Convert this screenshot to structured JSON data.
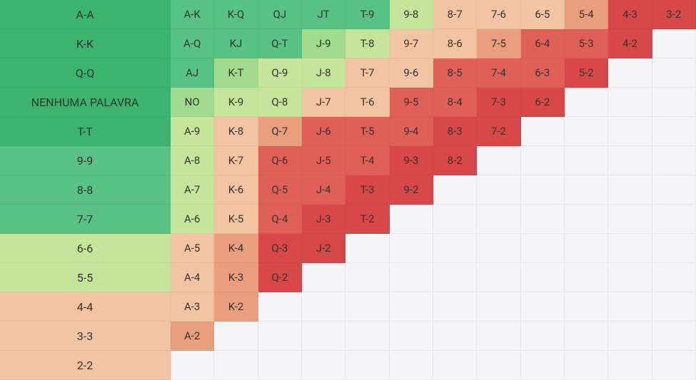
{
  "type": "heatmap",
  "grid_cols": 13,
  "grid_rows": 13,
  "first_col_width": 239,
  "cell_fontsize": 15,
  "text_color": "#333333",
  "colors": {
    "g4": "#3cb46e",
    "g3": "#58c184",
    "g2": "#a2da8e",
    "g1": "#c5e59a",
    "o2": "#f2c4a2",
    "o1": "#e99e7d",
    "r2": "#e06058",
    "r1": "#d84848",
    "empty": "#f5f5f7"
  },
  "rows": [
    [
      {
        "label": "A-A",
        "c": "g4"
      },
      {
        "label": "A-K",
        "c": "g3"
      },
      {
        "label": "K-Q",
        "c": "g3"
      },
      {
        "label": "QJ",
        "c": "g3"
      },
      {
        "label": "JT",
        "c": "g3"
      },
      {
        "label": "T-9",
        "c": "g3"
      },
      {
        "label": "9-8",
        "c": "g1"
      },
      {
        "label": "8-7",
        "c": "o2"
      },
      {
        "label": "7-6",
        "c": "o2"
      },
      {
        "label": "6-5",
        "c": "o2"
      },
      {
        "label": "5-4",
        "c": "o1"
      },
      {
        "label": "4-3",
        "c": "r1"
      },
      {
        "label": "3-2",
        "c": "r1"
      }
    ],
    [
      {
        "label": "K-K",
        "c": "g4"
      },
      {
        "label": "A-Q",
        "c": "g3"
      },
      {
        "label": "KJ",
        "c": "g3"
      },
      {
        "label": "Q-T",
        "c": "g3"
      },
      {
        "label": "J-9",
        "c": "g2"
      },
      {
        "label": "T-8",
        "c": "g1"
      },
      {
        "label": "9-7",
        "c": "o2"
      },
      {
        "label": "8-6",
        "c": "o2"
      },
      {
        "label": "7-5",
        "c": "o1"
      },
      {
        "label": "6-4",
        "c": "r2"
      },
      {
        "label": "5-3",
        "c": "r2"
      },
      {
        "label": "4-2",
        "c": "r1"
      },
      {
        "label": "",
        "c": "empty"
      }
    ],
    [
      {
        "label": "Q-Q",
        "c": "g4"
      },
      {
        "label": "AJ",
        "c": "g3"
      },
      {
        "label": "K-T",
        "c": "g2"
      },
      {
        "label": "Q-9",
        "c": "g1"
      },
      {
        "label": "J-8",
        "c": "g1"
      },
      {
        "label": "T-7",
        "c": "o2"
      },
      {
        "label": "9-6",
        "c": "o2"
      },
      {
        "label": "8-5",
        "c": "r2"
      },
      {
        "label": "7-4",
        "c": "r2"
      },
      {
        "label": "6-3",
        "c": "r2"
      },
      {
        "label": "5-2",
        "c": "r1"
      },
      {
        "label": "",
        "c": "empty"
      },
      {
        "label": "",
        "c": "empty"
      }
    ],
    [
      {
        "label": "NENHUMA PALAVRA",
        "c": "g4"
      },
      {
        "label": "NO",
        "c": "g2"
      },
      {
        "label": "K-9",
        "c": "g1"
      },
      {
        "label": "Q-8",
        "c": "g1"
      },
      {
        "label": "J-7",
        "c": "o2"
      },
      {
        "label": "T-6",
        "c": "o2"
      },
      {
        "label": "9-5",
        "c": "r2"
      },
      {
        "label": "8-4",
        "c": "r2"
      },
      {
        "label": "7-3",
        "c": "r1"
      },
      {
        "label": "6-2",
        "c": "r1"
      },
      {
        "label": "",
        "c": "empty"
      },
      {
        "label": "",
        "c": "empty"
      },
      {
        "label": "",
        "c": "empty"
      }
    ],
    [
      {
        "label": "T-T",
        "c": "g4"
      },
      {
        "label": "A-9",
        "c": "g1"
      },
      {
        "label": "K-8",
        "c": "o2"
      },
      {
        "label": "Q-7",
        "c": "o1"
      },
      {
        "label": "J-6",
        "c": "r2"
      },
      {
        "label": "T-5",
        "c": "r2"
      },
      {
        "label": "9-4",
        "c": "r2"
      },
      {
        "label": "8-3",
        "c": "r1"
      },
      {
        "label": "7-2",
        "c": "r1"
      },
      {
        "label": "",
        "c": "empty"
      },
      {
        "label": "",
        "c": "empty"
      },
      {
        "label": "",
        "c": "empty"
      },
      {
        "label": "",
        "c": "empty"
      }
    ],
    [
      {
        "label": "9-9",
        "c": "g3"
      },
      {
        "label": "A-8",
        "c": "g1"
      },
      {
        "label": "K-7",
        "c": "o2"
      },
      {
        "label": "Q-6",
        "c": "r2"
      },
      {
        "label": "J-5",
        "c": "r2"
      },
      {
        "label": "T-4",
        "c": "r2"
      },
      {
        "label": "9-3",
        "c": "r1"
      },
      {
        "label": "8-2",
        "c": "r1"
      },
      {
        "label": "",
        "c": "empty"
      },
      {
        "label": "",
        "c": "empty"
      },
      {
        "label": "",
        "c": "empty"
      },
      {
        "label": "",
        "c": "empty"
      },
      {
        "label": "",
        "c": "empty"
      }
    ],
    [
      {
        "label": "8-8",
        "c": "g3"
      },
      {
        "label": "A-7",
        "c": "g1"
      },
      {
        "label": "K-6",
        "c": "o2"
      },
      {
        "label": "Q-5",
        "c": "r2"
      },
      {
        "label": "J-4",
        "c": "r2"
      },
      {
        "label": "T-3",
        "c": "r1"
      },
      {
        "label": "9-2",
        "c": "r1"
      },
      {
        "label": "",
        "c": "empty"
      },
      {
        "label": "",
        "c": "empty"
      },
      {
        "label": "",
        "c": "empty"
      },
      {
        "label": "",
        "c": "empty"
      },
      {
        "label": "",
        "c": "empty"
      },
      {
        "label": "",
        "c": "empty"
      }
    ],
    [
      {
        "label": "7-7",
        "c": "g3"
      },
      {
        "label": "A-6",
        "c": "g1"
      },
      {
        "label": "K-5",
        "c": "o2"
      },
      {
        "label": "Q-4",
        "c": "r2"
      },
      {
        "label": "J-3",
        "c": "r1"
      },
      {
        "label": "T-2",
        "c": "r1"
      },
      {
        "label": "",
        "c": "empty"
      },
      {
        "label": "",
        "c": "empty"
      },
      {
        "label": "",
        "c": "empty"
      },
      {
        "label": "",
        "c": "empty"
      },
      {
        "label": "",
        "c": "empty"
      },
      {
        "label": "",
        "c": "empty"
      },
      {
        "label": "",
        "c": "empty"
      }
    ],
    [
      {
        "label": "6-6",
        "c": "g1"
      },
      {
        "label": "A-5",
        "c": "o2"
      },
      {
        "label": "K-4",
        "c": "o1"
      },
      {
        "label": "Q-3",
        "c": "r1"
      },
      {
        "label": "J-2",
        "c": "r1"
      },
      {
        "label": "",
        "c": "empty"
      },
      {
        "label": "",
        "c": "empty"
      },
      {
        "label": "",
        "c": "empty"
      },
      {
        "label": "",
        "c": "empty"
      },
      {
        "label": "",
        "c": "empty"
      },
      {
        "label": "",
        "c": "empty"
      },
      {
        "label": "",
        "c": "empty"
      },
      {
        "label": "",
        "c": "empty"
      }
    ],
    [
      {
        "label": "5-5",
        "c": "g1"
      },
      {
        "label": "A-4",
        "c": "o2"
      },
      {
        "label": "K-3",
        "c": "o1"
      },
      {
        "label": "Q-2",
        "c": "r1"
      },
      {
        "label": "",
        "c": "empty"
      },
      {
        "label": "",
        "c": "empty"
      },
      {
        "label": "",
        "c": "empty"
      },
      {
        "label": "",
        "c": "empty"
      },
      {
        "label": "",
        "c": "empty"
      },
      {
        "label": "",
        "c": "empty"
      },
      {
        "label": "",
        "c": "empty"
      },
      {
        "label": "",
        "c": "empty"
      },
      {
        "label": "",
        "c": "empty"
      }
    ],
    [
      {
        "label": "4-4",
        "c": "o2"
      },
      {
        "label": "A-3",
        "c": "o2"
      },
      {
        "label": "K-2",
        "c": "o1"
      },
      {
        "label": "",
        "c": "empty"
      },
      {
        "label": "",
        "c": "empty"
      },
      {
        "label": "",
        "c": "empty"
      },
      {
        "label": "",
        "c": "empty"
      },
      {
        "label": "",
        "c": "empty"
      },
      {
        "label": "",
        "c": "empty"
      },
      {
        "label": "",
        "c": "empty"
      },
      {
        "label": "",
        "c": "empty"
      },
      {
        "label": "",
        "c": "empty"
      },
      {
        "label": "",
        "c": "empty"
      }
    ],
    [
      {
        "label": "3-3",
        "c": "o2"
      },
      {
        "label": "A-2",
        "c": "o1"
      },
      {
        "label": "",
        "c": "empty"
      },
      {
        "label": "",
        "c": "empty"
      },
      {
        "label": "",
        "c": "empty"
      },
      {
        "label": "",
        "c": "empty"
      },
      {
        "label": "",
        "c": "empty"
      },
      {
        "label": "",
        "c": "empty"
      },
      {
        "label": "",
        "c": "empty"
      },
      {
        "label": "",
        "c": "empty"
      },
      {
        "label": "",
        "c": "empty"
      },
      {
        "label": "",
        "c": "empty"
      },
      {
        "label": "",
        "c": "empty"
      }
    ],
    [
      {
        "label": "2-2",
        "c": "o2"
      },
      {
        "label": "",
        "c": "empty"
      },
      {
        "label": "",
        "c": "empty"
      },
      {
        "label": "",
        "c": "empty"
      },
      {
        "label": "",
        "c": "empty"
      },
      {
        "label": "",
        "c": "empty"
      },
      {
        "label": "",
        "c": "empty"
      },
      {
        "label": "",
        "c": "empty"
      },
      {
        "label": "",
        "c": "empty"
      },
      {
        "label": "",
        "c": "empty"
      },
      {
        "label": "",
        "c": "empty"
      },
      {
        "label": "",
        "c": "empty"
      },
      {
        "label": "",
        "c": "empty"
      }
    ]
  ]
}
